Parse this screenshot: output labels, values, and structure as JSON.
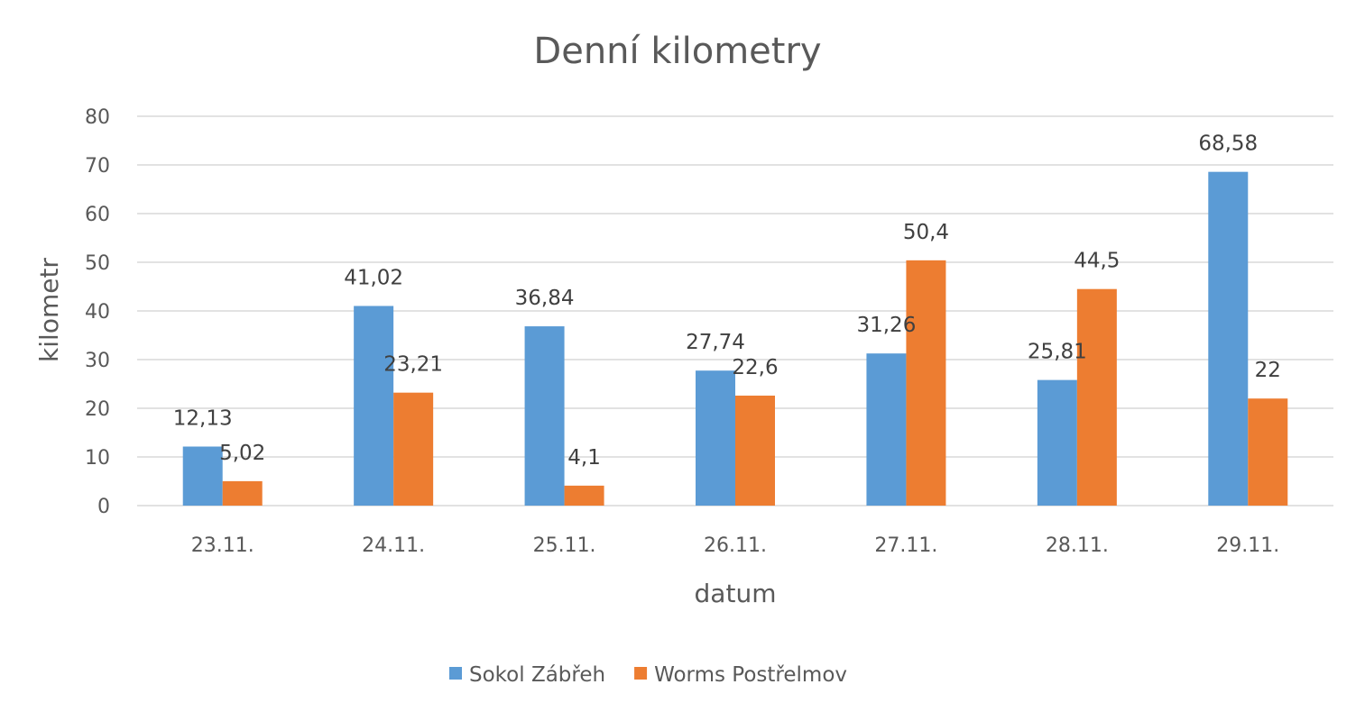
{
  "chart_data": {
    "type": "bar",
    "title": "Denní kilometry",
    "xlabel": "datum",
    "ylabel": "kilometr",
    "ylim": [
      0,
      80
    ],
    "yticks": [
      0,
      10,
      20,
      30,
      40,
      50,
      60,
      70,
      80
    ],
    "grid": true,
    "legend_position": "bottom",
    "categories": [
      "23.11.",
      "24.11.",
      "25.11.",
      "26.11.",
      "27.11.",
      "28.11.",
      "29.11."
    ],
    "series": [
      {
        "name": "Sokol Zábřeh",
        "color": "#5b9bd5",
        "values": [
          12.13,
          41.02,
          36.84,
          27.74,
          31.26,
          25.81,
          68.58
        ],
        "labels": [
          "12,13",
          "41,02",
          "36,84",
          "27,74",
          "31,26",
          "25,81",
          "68,58"
        ]
      },
      {
        "name": "Worms Postřelmov",
        "color": "#ed7d31",
        "values": [
          5.02,
          23.21,
          4.1,
          22.6,
          50.4,
          44.5,
          22
        ],
        "labels": [
          "5,02",
          "23,21",
          "4,1",
          "22,6",
          "50,4",
          "44,5",
          "22"
        ]
      }
    ]
  }
}
